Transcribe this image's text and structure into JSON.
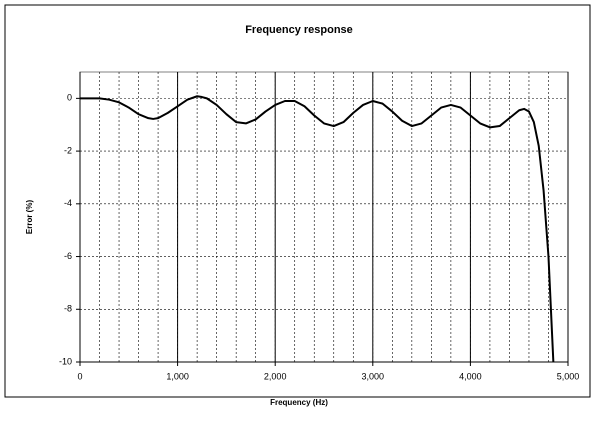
{
  "chart_data": {
    "type": "line",
    "title": "Frequency response",
    "x_label": "Frequency (Hz)",
    "y_label": "Error (%)",
    "x": [
      0,
      100,
      200,
      300,
      400,
      500,
      600,
      700,
      750,
      800,
      900,
      1000,
      1100,
      1200,
      1250,
      1300,
      1400,
      1500,
      1600,
      1700,
      1800,
      1900,
      2000,
      2100,
      2200,
      2300,
      2400,
      2500,
      2600,
      2700,
      2800,
      2900,
      3000,
      3100,
      3200,
      3300,
      3400,
      3500,
      3600,
      3700,
      3800,
      3900,
      4000,
      4100,
      4200,
      4300,
      4400,
      4500,
      4550,
      4600,
      4650,
      4700,
      4750,
      4800,
      4850
    ],
    "series": [
      {
        "color": "#000000",
        "values": [
          0,
          0,
          0,
          -0.05,
          -0.15,
          -0.35,
          -0.6,
          -0.75,
          -0.78,
          -0.75,
          -0.55,
          -0.3,
          -0.05,
          0.08,
          0.05,
          0,
          -0.25,
          -0.6,
          -0.9,
          -0.95,
          -0.8,
          -0.5,
          -0.25,
          -0.1,
          -0.1,
          -0.3,
          -0.65,
          -0.95,
          -1.05,
          -0.9,
          -0.55,
          -0.25,
          -0.1,
          -0.2,
          -0.5,
          -0.85,
          -1.05,
          -0.95,
          -0.65,
          -0.35,
          -0.25,
          -0.35,
          -0.65,
          -0.95,
          -1.1,
          -1.05,
          -0.75,
          -0.45,
          -0.4,
          -0.5,
          -0.9,
          -1.8,
          -3.5,
          -6,
          -10
        ]
      }
    ],
    "xlim": [
      0,
      5000
    ],
    "xticks": [
      0,
      {
        "value": 1000,
        "label": "1,000"
      },
      {
        "value": 2000,
        "label": "2,000"
      },
      {
        "value": 3000,
        "label": "3,000"
      },
      {
        "value": 4000,
        "label": "4,000"
      },
      {
        "value": 5000,
        "label": "5,000"
      }
    ],
    "ylim": [
      -10,
      1
    ],
    "yticks": [
      -10,
      -8,
      -6,
      -4,
      -2,
      0
    ],
    "grid": true,
    "minor_x_grid_step": 200
  }
}
